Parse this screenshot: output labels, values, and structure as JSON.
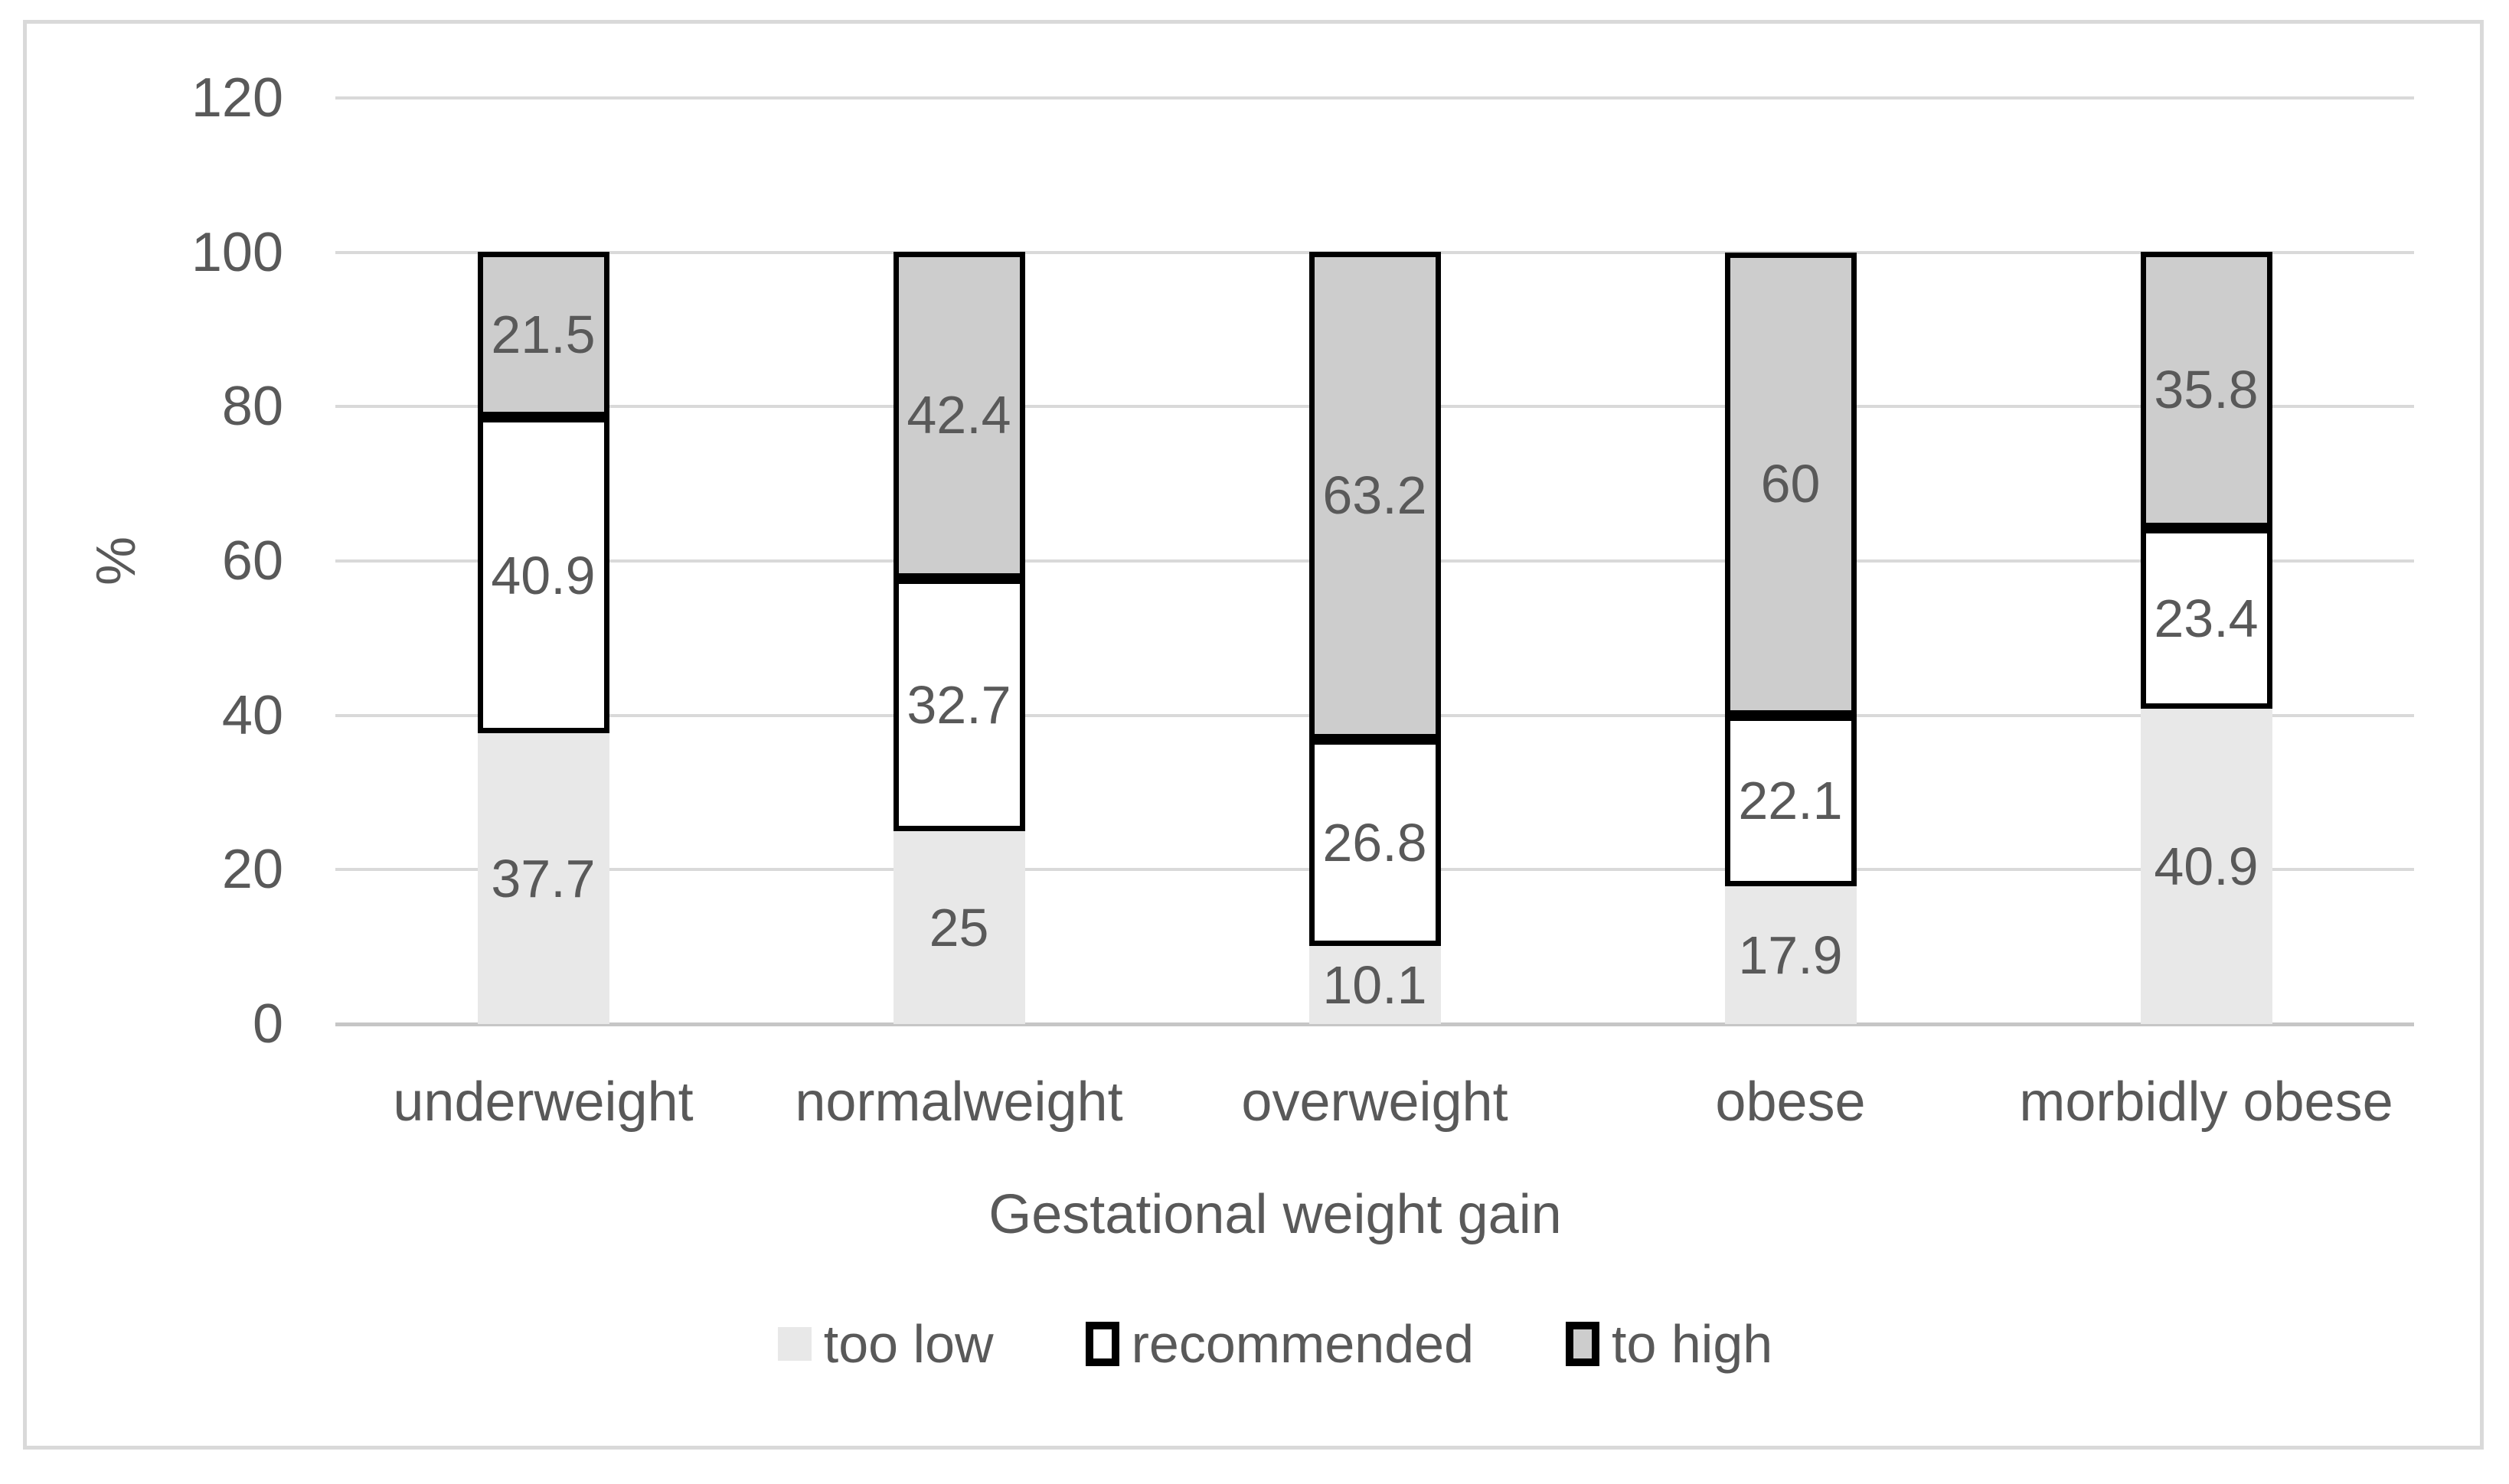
{
  "chart_data": {
    "type": "bar",
    "stacked": true,
    "xlabel": "Gestational weight gain",
    "ylabel": "%",
    "categories": [
      "underweight",
      "normalweight",
      "overweight",
      "obese",
      "morbidly obese"
    ],
    "series": [
      {
        "name": "too low",
        "values": [
          37.7,
          25,
          10.1,
          17.9,
          40.9
        ],
        "fill": "#e8e8e8",
        "border": null
      },
      {
        "name": "recommended",
        "values": [
          40.9,
          32.7,
          26.8,
          22.1,
          23.4
        ],
        "fill": "#ffffff",
        "border": "#000000"
      },
      {
        "name": "to high",
        "values": [
          21.5,
          42.4,
          63.2,
          60,
          35.8
        ],
        "fill": "#cdcdcd",
        "border": "#000000"
      }
    ],
    "ylim": [
      0,
      120
    ],
    "yticks": [
      0,
      20,
      40,
      60,
      80,
      100,
      120
    ],
    "grid": true,
    "data_labels": true,
    "legend_position": "bottom"
  },
  "colors": {
    "grid": "#d9d9d9",
    "axis_line": "#c6c6c6",
    "frame_border": "#d9d9d9",
    "text": "#595959",
    "segment_border": "#000000",
    "background": "#ffffff"
  }
}
